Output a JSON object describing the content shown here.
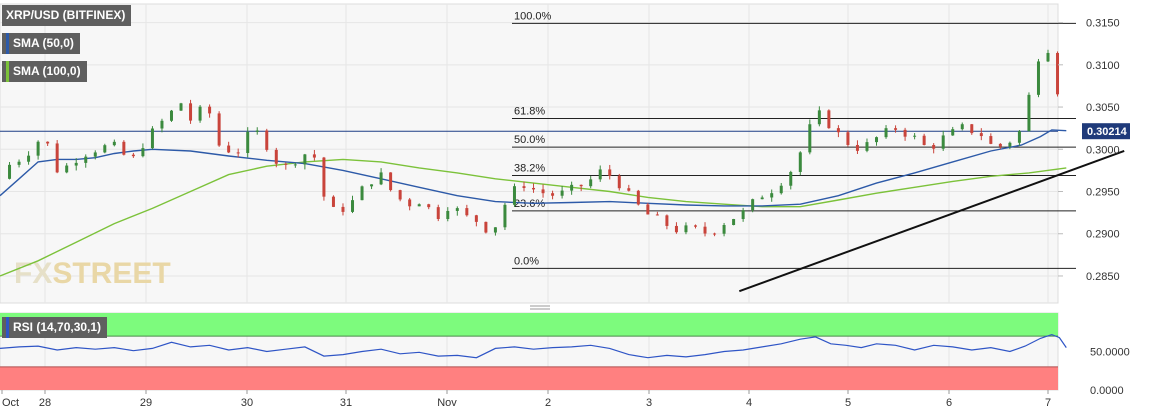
{
  "colors": {
    "background": "#f7f7f7",
    "grid": "#e6e6e6",
    "bull": "#3b8a3e",
    "bear": "#c9443b",
    "sma50": "#2d5aa8",
    "sma100": "#7cc23a",
    "rsi_line": "#2f55c6",
    "rsi_overbought": "#7dfb7d",
    "rsi_oversold": "#ff8080",
    "fib_line": "#222222",
    "trendline": "#111111",
    "watermark_fx": "#e6e0c8",
    "watermark_street": "#e9d7a6"
  },
  "legend": {
    "symbol": "XRP/USD (BITFINEX)",
    "sma50": "SMA (50,0)",
    "sma100": "SMA (100,0)",
    "rsi": "RSI (14,70,30,1)"
  },
  "watermark": "FXSTREET",
  "price_badge": "0.30214",
  "chart_data": [
    {
      "type": "candlestick",
      "title": "XRP/USD (BITFINEX)",
      "x_ticks": [
        "Oct",
        "28",
        "29",
        "30",
        "31",
        "Nov",
        "2",
        "3",
        "4",
        "5",
        "6",
        "7"
      ],
      "y_ticks": [
        "0.3150",
        "0.3100",
        "0.3050",
        "0.3000",
        "0.2950",
        "0.2900",
        "0.2850"
      ],
      "ylim": [
        0.2818,
        0.3172
      ],
      "grid": true,
      "last_price": 0.30214,
      "fibonacci": [
        {
          "label": "100.0%",
          "value": 0.3149
        },
        {
          "label": "61.8%",
          "value": 0.30365
        },
        {
          "label": "50.0%",
          "value": 0.30025
        },
        {
          "label": "38.2%",
          "value": 0.2969
        },
        {
          "label": "23.6%",
          "value": 0.2927
        },
        {
          "label": "0.0%",
          "value": 0.2859
        }
      ],
      "trendline": {
        "from": [
          4.85,
          0.2832
        ],
        "to": [
          7.55,
          0.2998
        ]
      },
      "price_path": [
        [
          0.0,
          0.2965
        ],
        [
          0.3,
          0.2985
        ],
        [
          0.6,
          0.299
        ],
        [
          1.0,
          0.301
        ],
        [
          1.25,
          0.3005
        ],
        [
          1.55,
          0.297
        ],
        [
          1.85,
          0.2985
        ],
        [
          2.2,
          0.2995
        ],
        [
          2.5,
          0.3
        ],
        [
          2.95,
          0.3005
        ],
        [
          3.45,
          0.2985
        ],
        [
          3.8,
          0.301
        ],
        [
          4.3,
          0.3035
        ],
        [
          4.75,
          0.3055
        ],
        [
          5.0,
          0.3035
        ],
        [
          5.25,
          0.3045
        ],
        [
          5.45,
          0.305
        ],
        [
          5.75,
          0.3005
        ],
        [
          6.2,
          0.2995
        ],
        [
          6.65,
          0.3025
        ],
        [
          7.0,
          0.3005
        ],
        [
          7.4,
          0.2975
        ],
        [
          7.75,
          0.2988
        ],
        [
          8.2,
          0.3
        ],
        [
          8.55,
          0.2935
        ],
        [
          8.8,
          0.2925
        ],
        [
          9.2,
          0.2935
        ],
        [
          9.55,
          0.2955
        ],
        [
          9.95,
          0.2972
        ],
        [
          10.35,
          0.2945
        ],
        [
          10.7,
          0.2935
        ],
        [
          11.05,
          0.294
        ],
        [
          11.45,
          0.292
        ],
        [
          11.8,
          0.2935
        ],
        [
          12.2,
          0.292
        ],
        [
          12.55,
          0.2915
        ],
        [
          12.9,
          0.29
        ],
        [
          13.35,
          0.2945
        ],
        [
          13.7,
          0.296
        ],
        [
          14.1,
          0.295
        ],
        [
          14.6,
          0.2945
        ],
        [
          15.0,
          0.2952
        ],
        [
          15.4,
          0.296
        ],
        [
          15.8,
          0.2975
        ],
        [
          16.15,
          0.2965
        ],
        [
          16.5,
          0.2945
        ],
        [
          16.9,
          0.2925
        ],
        [
          17.3,
          0.2915
        ],
        [
          17.75,
          0.2905
        ],
        [
          18.2,
          0.2905
        ],
        [
          18.6,
          0.29
        ],
        [
          19.05,
          0.2915
        ],
        [
          19.5,
          0.2925
        ],
        [
          19.95,
          0.2945
        ],
        [
          20.35,
          0.2955
        ],
        [
          20.75,
          0.2975
        ],
        [
          21.1,
          0.3005
        ],
        [
          21.4,
          0.3045
        ],
        [
          21.75,
          0.303
        ],
        [
          22.15,
          0.301
        ],
        [
          22.6,
          0.3
        ],
        [
          23.05,
          0.3015
        ],
        [
          23.5,
          0.3025
        ],
        [
          23.95,
          0.3015
        ],
        [
          24.35,
          0.3
        ],
        [
          24.8,
          0.3015
        ],
        [
          25.25,
          0.3025
        ],
        [
          25.7,
          0.302
        ],
        [
          26.1,
          0.3
        ],
        [
          26.5,
          0.301
        ],
        [
          26.85,
          0.3025
        ],
        [
          27.15,
          0.31
        ],
        [
          27.45,
          0.313
        ],
        [
          27.65,
          0.309
        ],
        [
          27.85,
          0.305
        ],
        [
          27.98,
          0.30214
        ]
      ],
      "sma50": [
        [
          0.0,
          0.2945
        ],
        [
          0.5,
          0.2965
        ],
        [
          1.0,
          0.2985
        ],
        [
          1.5,
          0.2988
        ],
        [
          2.0,
          0.2988
        ],
        [
          2.5,
          0.299
        ],
        [
          3.0,
          0.2995
        ],
        [
          3.5,
          0.2998
        ],
        [
          4.0,
          0.3
        ],
        [
          5.0,
          0.2998
        ],
        [
          6.0,
          0.2992
        ],
        [
          7.0,
          0.2987
        ],
        [
          8.0,
          0.2983
        ],
        [
          9.0,
          0.2975
        ],
        [
          10.0,
          0.2965
        ],
        [
          11.0,
          0.2955
        ],
        [
          12.0,
          0.2945
        ],
        [
          13.0,
          0.2938
        ],
        [
          14.0,
          0.2936
        ],
        [
          15.0,
          0.2937
        ],
        [
          16.0,
          0.2938
        ],
        [
          17.0,
          0.2936
        ],
        [
          18.0,
          0.2934
        ],
        [
          19.0,
          0.2933
        ],
        [
          20.0,
          0.2933
        ],
        [
          21.0,
          0.2935
        ],
        [
          22.0,
          0.2945
        ],
        [
          23.0,
          0.296
        ],
        [
          24.0,
          0.2972
        ],
        [
          25.0,
          0.2985
        ],
        [
          26.0,
          0.2998
        ],
        [
          26.8,
          0.3005
        ],
        [
          27.3,
          0.3015
        ],
        [
          27.6,
          0.3023
        ],
        [
          27.98,
          0.3022
        ]
      ],
      "sma100": [
        [
          0.0,
          0.285
        ],
        [
          1.0,
          0.2868
        ],
        [
          2.0,
          0.289
        ],
        [
          3.0,
          0.2912
        ],
        [
          4.0,
          0.293
        ],
        [
          5.0,
          0.295
        ],
        [
          6.0,
          0.297
        ],
        [
          7.0,
          0.298
        ],
        [
          8.0,
          0.2985
        ],
        [
          9.0,
          0.2988
        ],
        [
          10.0,
          0.2985
        ],
        [
          11.0,
          0.2978
        ],
        [
          12.0,
          0.2972
        ],
        [
          13.0,
          0.2965
        ],
        [
          14.0,
          0.296
        ],
        [
          15.0,
          0.2955
        ],
        [
          16.0,
          0.295
        ],
        [
          17.0,
          0.2943
        ],
        [
          18.0,
          0.2938
        ],
        [
          19.0,
          0.2935
        ],
        [
          20.0,
          0.2932
        ],
        [
          21.0,
          0.2932
        ],
        [
          22.0,
          0.294
        ],
        [
          23.0,
          0.2948
        ],
        [
          24.0,
          0.2955
        ],
        [
          25.0,
          0.2962
        ],
        [
          26.0,
          0.2968
        ],
        [
          27.0,
          0.2972
        ],
        [
          27.98,
          0.2978
        ]
      ]
    },
    {
      "type": "line",
      "title": "RSI (14,70,30,1)",
      "y_ticks": [
        "50.0000",
        "0.0000"
      ],
      "ylim": [
        0,
        100
      ],
      "overbought": 70,
      "oversold": 30,
      "points": [
        [
          0.0,
          54
        ],
        [
          0.5,
          56
        ],
        [
          1.0,
          57
        ],
        [
          1.5,
          52
        ],
        [
          2.0,
          55
        ],
        [
          2.5,
          53
        ],
        [
          3.0,
          55
        ],
        [
          3.5,
          51
        ],
        [
          4.0,
          54
        ],
        [
          4.5,
          62
        ],
        [
          5.0,
          56
        ],
        [
          5.5,
          58
        ],
        [
          6.0,
          52
        ],
        [
          6.5,
          55
        ],
        [
          7.0,
          50
        ],
        [
          7.5,
          53
        ],
        [
          8.0,
          56
        ],
        [
          8.5,
          44
        ],
        [
          9.0,
          46
        ],
        [
          9.5,
          50
        ],
        [
          10.0,
          53
        ],
        [
          10.5,
          47
        ],
        [
          11.0,
          49
        ],
        [
          11.5,
          44
        ],
        [
          12.0,
          45
        ],
        [
          12.5,
          42
        ],
        [
          13.0,
          54
        ],
        [
          13.5,
          56
        ],
        [
          14.0,
          53
        ],
        [
          14.5,
          55
        ],
        [
          15.0,
          56
        ],
        [
          15.5,
          58
        ],
        [
          16.0,
          54
        ],
        [
          16.5,
          46
        ],
        [
          17.0,
          42
        ],
        [
          17.5,
          45
        ],
        [
          18.0,
          43
        ],
        [
          18.5,
          46
        ],
        [
          19.0,
          50
        ],
        [
          19.5,
          52
        ],
        [
          20.0,
          56
        ],
        [
          20.5,
          60
        ],
        [
          21.0,
          66
        ],
        [
          21.4,
          69
        ],
        [
          21.8,
          60
        ],
        [
          22.2,
          58
        ],
        [
          22.6,
          55
        ],
        [
          23.0,
          60
        ],
        [
          23.5,
          58
        ],
        [
          24.0,
          52
        ],
        [
          24.5,
          58
        ],
        [
          25.0,
          56
        ],
        [
          25.5,
          52
        ],
        [
          26.0,
          55
        ],
        [
          26.5,
          50
        ],
        [
          26.9,
          57
        ],
        [
          27.3,
          67
        ],
        [
          27.6,
          72
        ],
        [
          27.8,
          68
        ],
        [
          27.98,
          55
        ]
      ]
    }
  ]
}
